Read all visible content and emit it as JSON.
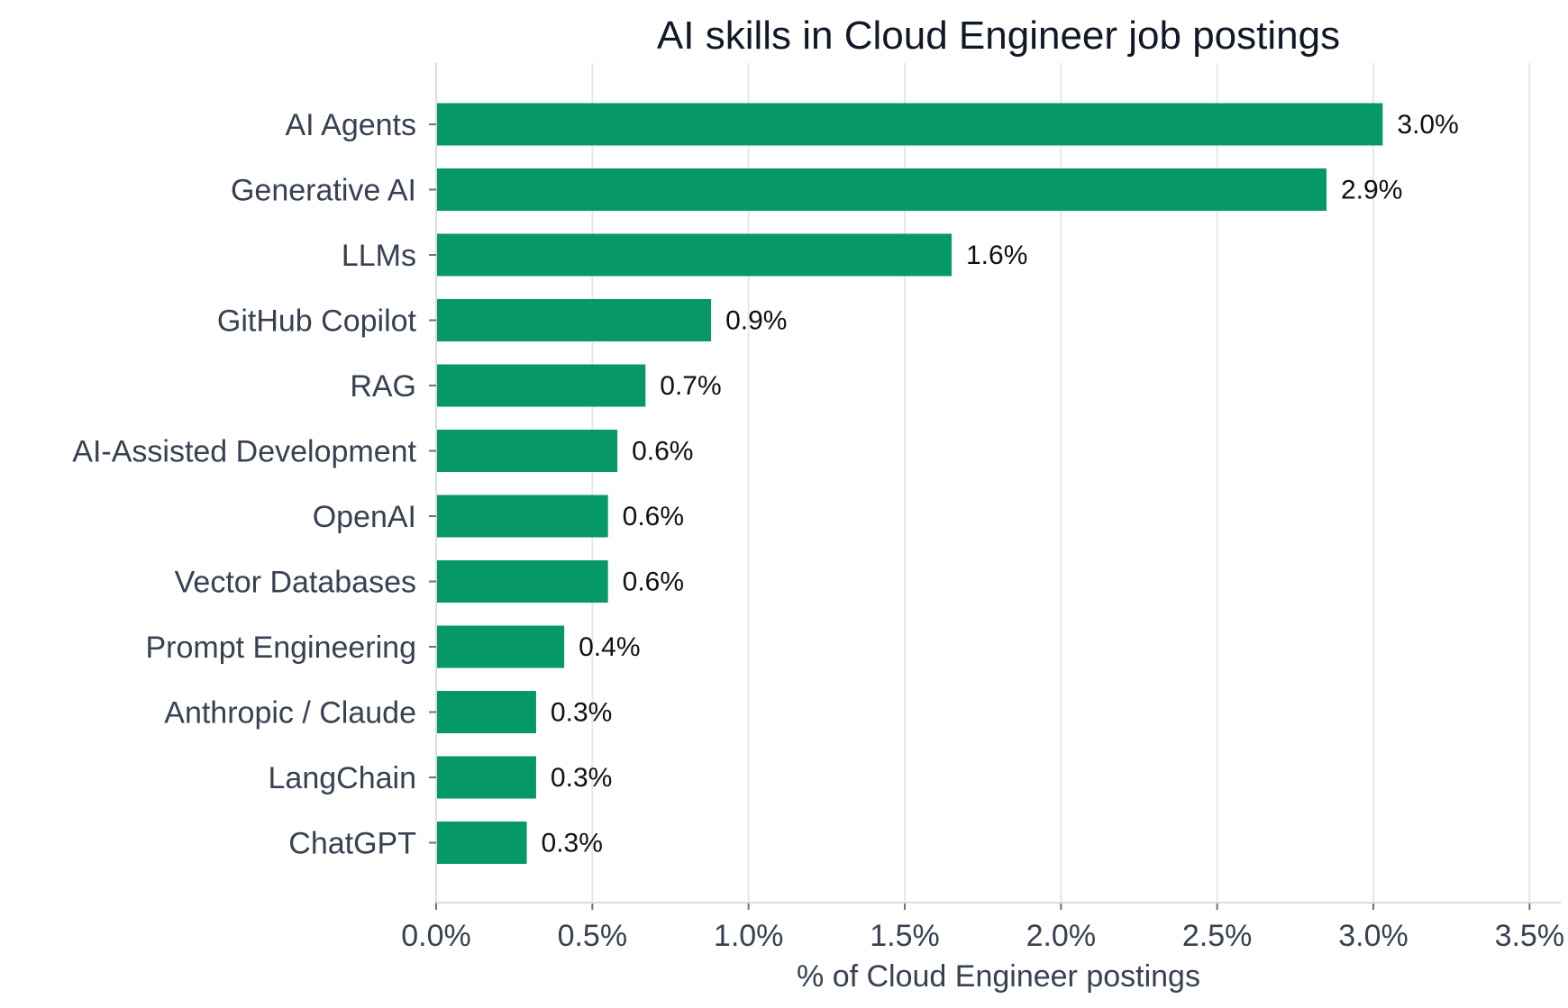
{
  "chart_data": {
    "type": "bar",
    "orientation": "horizontal",
    "title": "AI skills in Cloud Engineer job postings",
    "xlabel": "% of Cloud Engineer postings",
    "ylabel": "",
    "categories": [
      "AI Agents",
      "Generative AI",
      "LLMs",
      "GitHub Copilot",
      "RAG",
      "AI-Assisted Development",
      "OpenAI",
      "Vector Databases",
      "Prompt Engineering",
      "Anthropic / Claude",
      "LangChain",
      "ChatGPT"
    ],
    "values": [
      3.03,
      2.85,
      1.65,
      0.88,
      0.67,
      0.58,
      0.55,
      0.55,
      0.41,
      0.32,
      0.32,
      0.29
    ],
    "value_labels": [
      "3.0%",
      "2.9%",
      "1.6%",
      "0.9%",
      "0.7%",
      "0.6%",
      "0.6%",
      "0.6%",
      "0.4%",
      "0.3%",
      "0.3%",
      "0.3%"
    ],
    "xlim": [
      0,
      3.6
    ],
    "xticks": [
      0,
      0.5,
      1.0,
      1.5,
      2.0,
      2.5,
      3.0,
      3.5
    ],
    "xtick_labels": [
      "0.0%",
      "0.5%",
      "1.0%",
      "1.5%",
      "2.0%",
      "2.5%",
      "3.0%",
      "3.5%"
    ],
    "grid": "vertical",
    "legend": "none",
    "bar_color": "#069869"
  }
}
